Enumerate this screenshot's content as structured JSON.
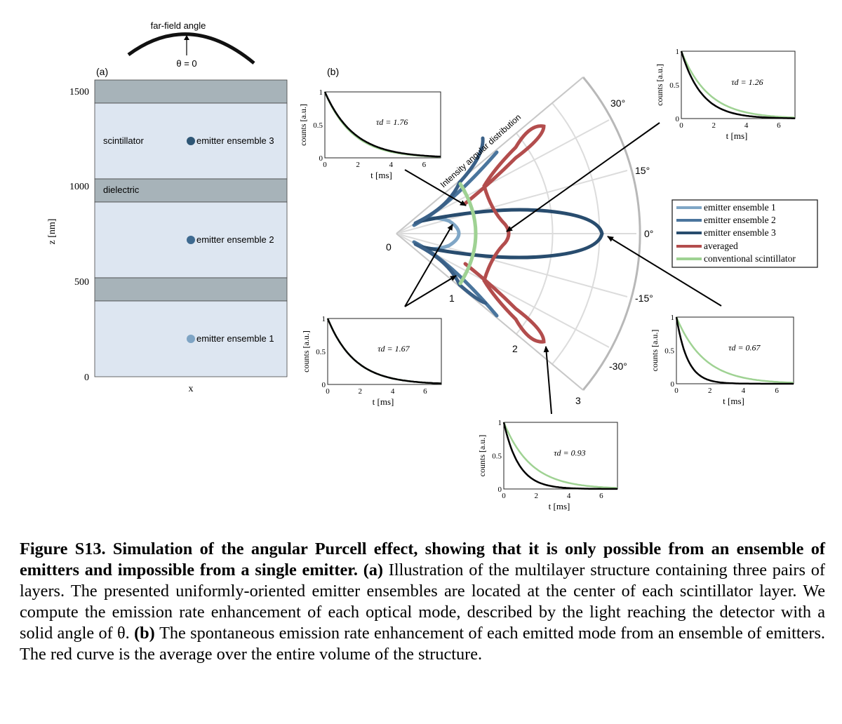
{
  "panel_a": {
    "label": "(a)",
    "far_field_label": "far-field angle",
    "theta_label": "θ = 0",
    "z_axis_label": "z [nm]",
    "x_axis_label": "x",
    "z_ticks": [
      "1500",
      "1000",
      "500",
      "0"
    ],
    "layer_labels": {
      "scintillator": "scintillator",
      "dielectric": "dielectric"
    },
    "emitters": [
      {
        "label": "emitter ensemble 3",
        "color": "#2e5675"
      },
      {
        "label": "emitter ensemble 2",
        "color": "#3e6a90"
      },
      {
        "label": "emitter ensemble 1",
        "color": "#7ea4c4"
      }
    ],
    "colors": {
      "scintillator": "#dde6f1",
      "dielectric": "#a7b3b9"
    }
  },
  "panel_b": {
    "label": "(b)",
    "polar_title": "Intensity angular distribution",
    "angle_labels": [
      "30°",
      "15°",
      "0°",
      "-15°",
      "-30°"
    ],
    "radial_labels": [
      "0",
      "1",
      "2",
      "3"
    ],
    "legend": [
      {
        "label": "emitter ensemble 1",
        "color": "#7fa6c6"
      },
      {
        "label": "emitter ensemble 2",
        "color": "#4a759d"
      },
      {
        "label": "emitter ensemble 3",
        "color": "#284c6e"
      },
      {
        "label": "averaged",
        "color": "#b34d4d"
      },
      {
        "label": "conventional scintillator",
        "color": "#9fd293"
      }
    ]
  },
  "insets": [
    {
      "tau_label": "τd = 1.76",
      "ylabel": "counts [a.u.]",
      "xlabel": "t [ms]",
      "y_ticks": [
        "1",
        "0.5",
        "0"
      ],
      "x_ticks": [
        "0",
        "2",
        "4",
        "6"
      ]
    },
    {
      "tau_label": "τd = 1.26",
      "ylabel": "counts [a.u.]",
      "xlabel": "t [ms]",
      "y_ticks": [
        "1",
        "0.5",
        "0"
      ],
      "x_ticks": [
        "0",
        "2",
        "4",
        "6"
      ]
    },
    {
      "tau_label": "τd = 1.67",
      "ylabel": "counts [a.u.]",
      "xlabel": "t [ms]",
      "y_ticks": [
        "1",
        "0.5",
        "0"
      ],
      "x_ticks": [
        "0",
        "2",
        "4",
        "6"
      ]
    },
    {
      "tau_label": "τd = 0.67",
      "ylabel": "counts [a.u.]",
      "xlabel": "t [ms]",
      "y_ticks": [
        "1",
        "0.5",
        "0"
      ],
      "x_ticks": [
        "0",
        "2",
        "4",
        "6"
      ]
    },
    {
      "tau_label": "τd = 0.93",
      "ylabel": "counts [a.u.]",
      "xlabel": "t [ms]",
      "y_ticks": [
        "1",
        "0.5",
        "0"
      ],
      "x_ticks": [
        "0",
        "2",
        "4",
        "6"
      ]
    }
  ],
  "chart_data": [
    {
      "type": "line",
      "ylabel": "counts [a.u.]",
      "xlabel": "t [ms]",
      "xlim": [
        0,
        7
      ],
      "ylim": [
        0,
        1
      ],
      "series": [
        {
          "decay_time_ms": 1.76,
          "color": "#000000"
        },
        {
          "decay_time_ms": 1.67,
          "color": "#9fd293"
        }
      ]
    },
    {
      "type": "line",
      "ylabel": "counts [a.u.]",
      "xlabel": "t [ms]",
      "xlim": [
        0,
        7
      ],
      "ylim": [
        0,
        1
      ],
      "series": [
        {
          "decay_time_ms": 1.26,
          "color": "#000000"
        },
        {
          "decay_time_ms": 1.67,
          "color": "#9fd293"
        }
      ]
    },
    {
      "type": "line",
      "ylabel": "counts [a.u.]",
      "xlabel": "t [ms]",
      "xlim": [
        0,
        7
      ],
      "ylim": [
        0,
        1
      ],
      "series": [
        {
          "decay_time_ms": 1.67,
          "color": "#000000"
        },
        {
          "decay_time_ms": 1.67,
          "color": "#9fd293"
        }
      ]
    },
    {
      "type": "line",
      "ylabel": "counts [a.u.]",
      "xlabel": "t [ms]",
      "xlim": [
        0,
        7
      ],
      "ylim": [
        0,
        1
      ],
      "series": [
        {
          "decay_time_ms": 0.67,
          "color": "#000000"
        },
        {
          "decay_time_ms": 1.67,
          "color": "#9fd293"
        }
      ]
    },
    {
      "type": "line",
      "ylabel": "counts [a.u.]",
      "xlabel": "t [ms]",
      "xlim": [
        0,
        7
      ],
      "ylim": [
        0,
        1
      ],
      "series": [
        {
          "decay_time_ms": 0.93,
          "color": "#000000"
        },
        {
          "decay_time_ms": 1.67,
          "color": "#9fd293"
        }
      ]
    }
  ],
  "caption": {
    "bold": "Figure S13. Simulation of the angular Purcell effect, showing that it is only possible from an ensemble of emitters and impossible from a single emitter.",
    "a_label": "(a)",
    "a_text": " Illustration of the multilayer structure containing three pairs of layers. The presented uniformly-oriented emitter ensembles are located at the center of each scintillator layer. We compute the emission rate enhancement of each optical mode, described by the light reaching the detector with a solid angle of θ.",
    "b_label": "(b)",
    "b_text": " The spontaneous emission rate enhancement of each emitted mode from an ensemble of emitters. The red curve is the average over the entire volume of the structure."
  }
}
